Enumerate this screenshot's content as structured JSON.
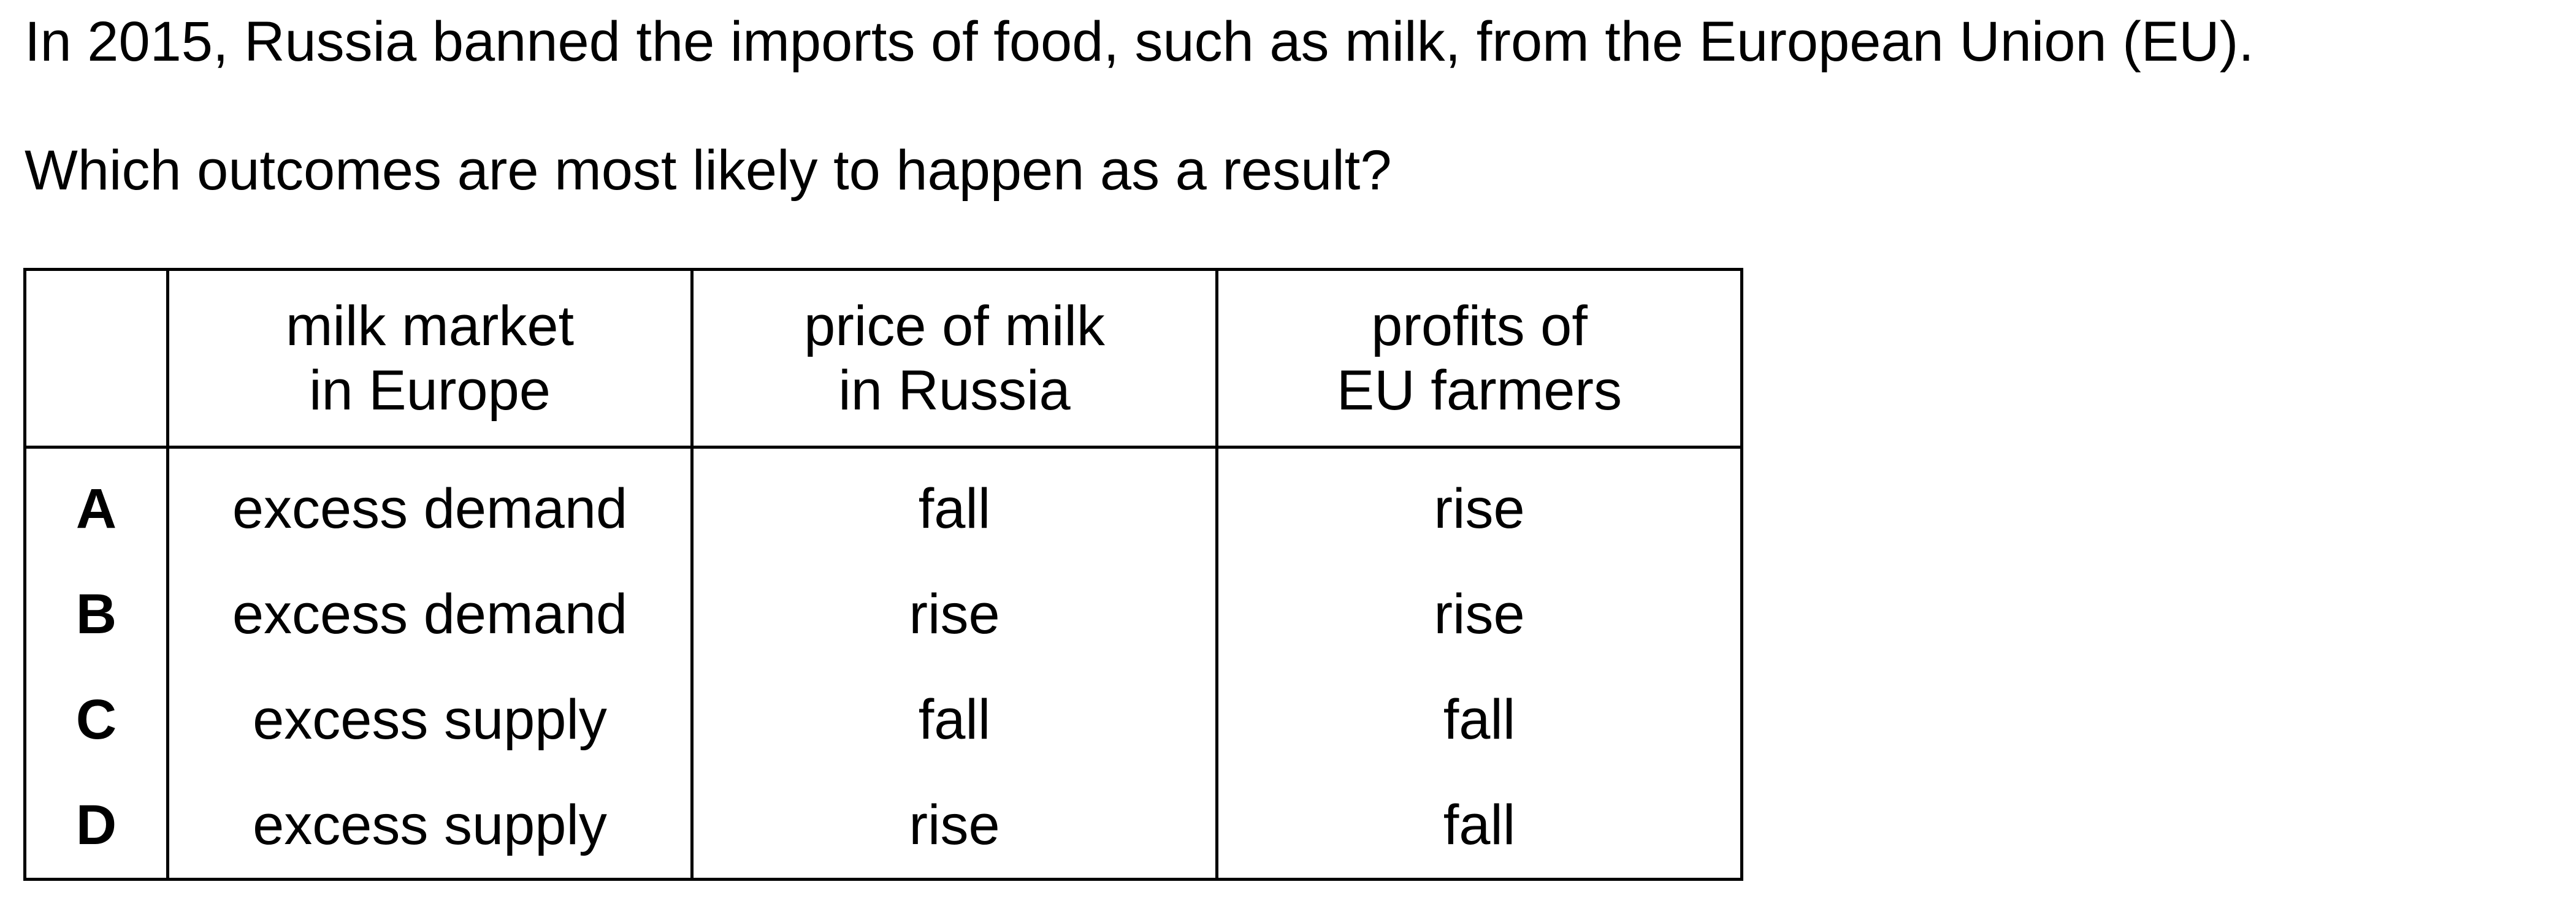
{
  "question": {
    "stem_line_1": "In 2015, Russia banned the imports of food, such as milk, from the European Union (EU).",
    "stem_line_2": "Which outcomes are most likely to happen as a result?"
  },
  "table": {
    "headers": [
      "",
      [
        "milk market",
        "in Europe"
      ],
      [
        "price of milk",
        "in Russia"
      ],
      [
        "profits of",
        "EU farmers"
      ]
    ],
    "rows": [
      [
        "A",
        "excess demand",
        "fall",
        "rise"
      ],
      [
        "B",
        "excess demand",
        "rise",
        "rise"
      ],
      [
        "C",
        "excess supply",
        "fall",
        "fall"
      ],
      [
        "D",
        "excess supply",
        "rise",
        "fall"
      ]
    ]
  }
}
